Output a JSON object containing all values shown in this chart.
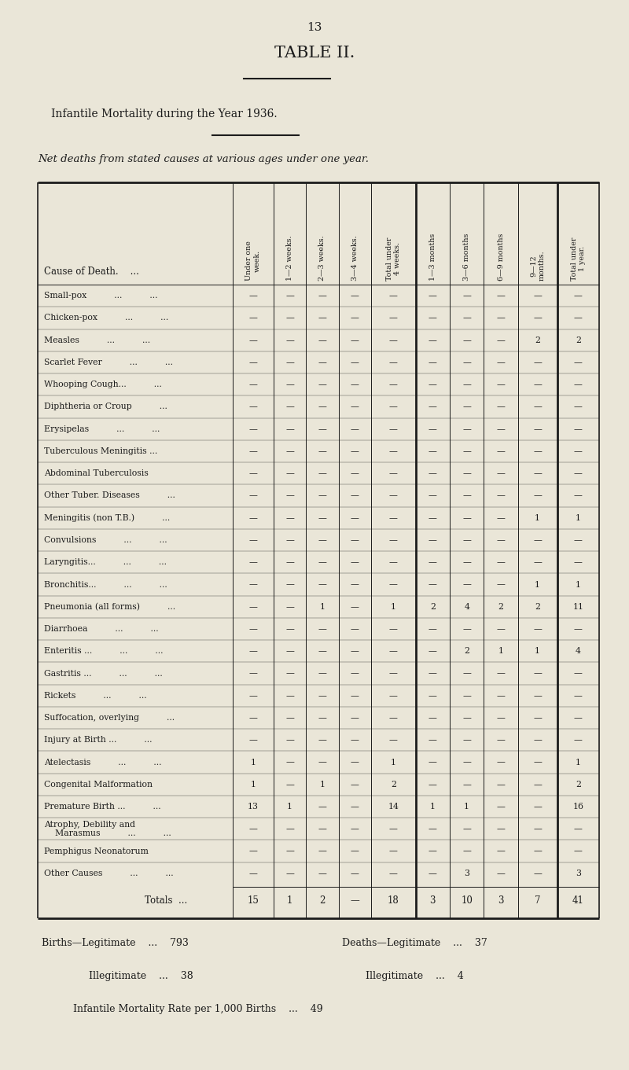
{
  "page_number": "13",
  "title": "TABLE II.",
  "subtitle": "Infantile Mortality during the Year 1936.",
  "subtitle2": "Net deaths from stated causes at various ages under one year.",
  "col_headers": [
    "Under one\nweek.",
    "1—2 weeks.",
    "2—3 weeks.",
    "3—4 weeks.",
    "Total under\n4 weeks.",
    "1—3 months",
    "3—6 months",
    "6—9 months",
    "9—12\nmonths.",
    "Total under\n1 year."
  ],
  "row_label": "Cause of Death.    ...",
  "causes": [
    "Small-pox          ...          ...",
    "Chicken-pox          ...          ...",
    "Measles          ...          ...",
    "Scarlet Fever          ...          ...",
    "Whooping Cough...          ...",
    "Diphtheria or Croup          ...",
    "Erysipelas          ...          ...",
    "Tuberculous Meningitis ...",
    "Abdominal Tuberculosis",
    "Other Tuber. Diseases          ...",
    "Meningitis (non T.B.)          ...",
    "Convulsions          ...          ...",
    "Laryngitis...          ...          ...",
    "Bronchitis...          ...          ...",
    "Pneumonia (all forms)          ...",
    "Diarrhoea          ...          ...",
    "Enteritis ...          ...          ...",
    "Gastritis ...          ...          ...",
    "Rickets          ...          ...",
    "Suffocation, overlying          ...",
    "Injury at Birth ...          ...",
    "Atelectasis          ...          ...",
    "Congenital Malformation",
    "Premature Birth ...          ...",
    "Atrophy, Debility and\n    Marasmus          ...          ...",
    "Pemphigus Neonatorum",
    "Other Causes          ...          ..."
  ],
  "data": [
    [
      "—",
      "—",
      "—",
      "—",
      "—",
      "—",
      "—",
      "—",
      "—",
      "—"
    ],
    [
      "—",
      "—",
      "—",
      "—",
      "—",
      "—",
      "—",
      "—",
      "—",
      "—"
    ],
    [
      "—",
      "—",
      "—",
      "—",
      "—",
      "—",
      "—",
      "—",
      "2",
      "2"
    ],
    [
      "—",
      "—",
      "—",
      "—",
      "—",
      "—",
      "—",
      "—",
      "—",
      "—"
    ],
    [
      "—",
      "—",
      "—",
      "—",
      "—",
      "—",
      "—",
      "—",
      "—",
      "—"
    ],
    [
      "—",
      "—",
      "—",
      "—",
      "—",
      "—",
      "—",
      "—",
      "—",
      "—"
    ],
    [
      "—",
      "—",
      "—",
      "—",
      "—",
      "—",
      "—",
      "—",
      "—",
      "—"
    ],
    [
      "—",
      "—",
      "—",
      "—",
      "—",
      "—",
      "—",
      "—",
      "—",
      "—"
    ],
    [
      "—",
      "—",
      "—",
      "—",
      "—",
      "—",
      "—",
      "—",
      "—",
      "—"
    ],
    [
      "—",
      "—",
      "—",
      "—",
      "—",
      "—",
      "—",
      "—",
      "—",
      "—"
    ],
    [
      "—",
      "—",
      "—",
      "—",
      "—",
      "—",
      "—",
      "—",
      "1",
      "1"
    ],
    [
      "—",
      "—",
      "—",
      "—",
      "—",
      "—",
      "—",
      "—",
      "—",
      "—"
    ],
    [
      "—",
      "—",
      "—",
      "—",
      "—",
      "—",
      "—",
      "—",
      "—",
      "—"
    ],
    [
      "—",
      "—",
      "—",
      "—",
      "—",
      "—",
      "—",
      "—",
      "1",
      "1"
    ],
    [
      "—",
      "—",
      "1",
      "—",
      "1",
      "2",
      "4",
      "2",
      "2",
      "11"
    ],
    [
      "—",
      "—",
      "—",
      "—",
      "—",
      "—",
      "—",
      "—",
      "—",
      "—"
    ],
    [
      "—",
      "—",
      "—",
      "—",
      "—",
      "—",
      "2",
      "1",
      "1",
      "4"
    ],
    [
      "—",
      "—",
      "—",
      "—",
      "—",
      "—",
      "—",
      "—",
      "—",
      "—"
    ],
    [
      "—",
      "—",
      "—",
      "—",
      "—",
      "—",
      "—",
      "—",
      "—",
      "—"
    ],
    [
      "—",
      "—",
      "—",
      "—",
      "—",
      "—",
      "—",
      "—",
      "—",
      "—"
    ],
    [
      "—",
      "—",
      "—",
      "—",
      "—",
      "—",
      "—",
      "—",
      "—",
      "—"
    ],
    [
      "1",
      "—",
      "—",
      "—",
      "1",
      "—",
      "—",
      "—",
      "—",
      "1"
    ],
    [
      "1",
      "—",
      "1",
      "—",
      "2",
      "—",
      "—",
      "—",
      "—",
      "2"
    ],
    [
      "13",
      "1",
      "—",
      "—",
      "14",
      "1",
      "1",
      "—",
      "—",
      "16"
    ],
    [
      "—",
      "—",
      "—",
      "—",
      "—",
      "—",
      "—",
      "—",
      "—",
      "—"
    ],
    [
      "—",
      "—",
      "—",
      "—",
      "—",
      "—",
      "—",
      "—",
      "—",
      "—"
    ],
    [
      "—",
      "—",
      "—",
      "—",
      "—",
      "—",
      "3",
      "—",
      "—",
      "3"
    ]
  ],
  "totals": [
    "15",
    "1",
    "2",
    "—",
    "18",
    "3",
    "10",
    "3",
    "7",
    "41"
  ],
  "footer_births_leg_label": "Births—Legitimate",
  "footer_births_leg_val": "793",
  "footer_deaths_leg_label": "Deaths—Legitimate",
  "footer_deaths_leg_val": "37",
  "footer_births_ill_label": "Illegitimate",
  "footer_births_ill_val": "38",
  "footer_deaths_ill_label": "Illegitimate",
  "footer_deaths_ill_val": "4",
  "footer_rate": "Infantile Mortality Rate per 1,000 Births",
  "footer_rate_val": "49",
  "bg_color": "#eae6d8",
  "text_color": "#1c1c1c",
  "line_color": "#1c1c1c"
}
